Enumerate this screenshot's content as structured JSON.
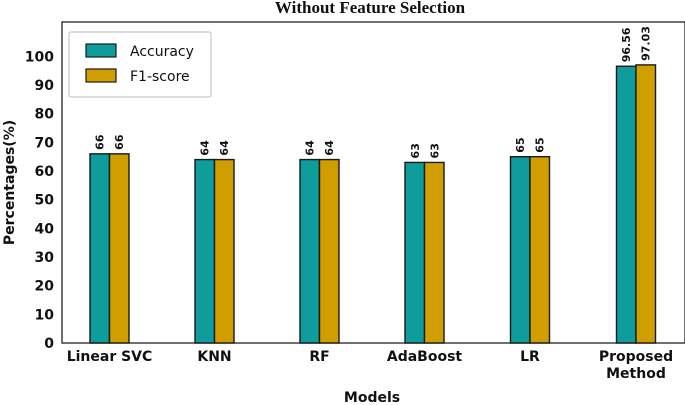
{
  "chart_data": {
    "type": "bar",
    "title": "Without Feature Selection",
    "xlabel": "Models",
    "ylabel": "Percentages(%)",
    "categories": [
      [
        "Linear SVC"
      ],
      [
        "KNN"
      ],
      [
        "RF"
      ],
      [
        "AdaBoost"
      ],
      [
        "LR"
      ],
      [
        "Proposed",
        "Method"
      ]
    ],
    "series": [
      {
        "name": "Accuracy",
        "color": "#0e9c9c",
        "values": [
          66,
          64,
          64,
          63,
          65,
          96.56
        ],
        "labels": [
          "66",
          "64",
          "64",
          "63",
          "65",
          "96.56"
        ]
      },
      {
        "name": "F1-score",
        "color": "#d19e00",
        "values": [
          66,
          64,
          64,
          63,
          65,
          97.03
        ],
        "labels": [
          "66",
          "64",
          "64",
          "63",
          "65",
          "97.03"
        ]
      }
    ],
    "yticks": [
      0,
      10,
      20,
      30,
      40,
      50,
      60,
      70,
      80,
      90,
      100
    ],
    "ylim": [
      0,
      112
    ],
    "grid": false,
    "legend_position": "top-left"
  }
}
